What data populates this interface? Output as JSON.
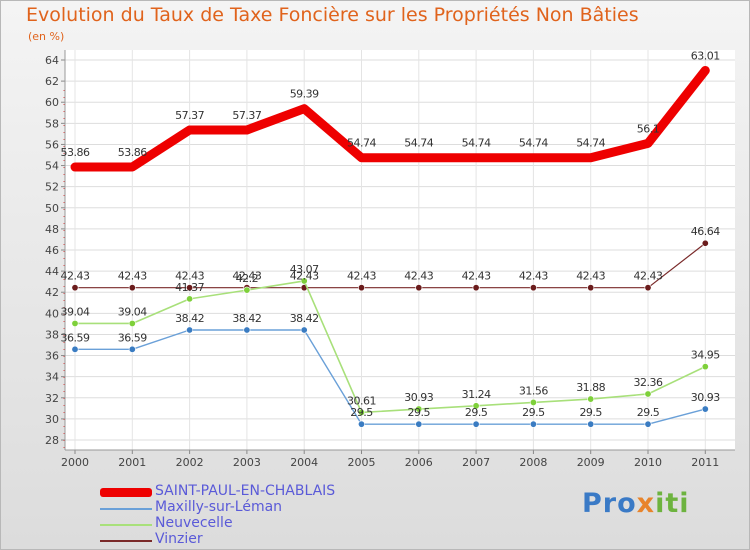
{
  "chart_data": {
    "type": "line",
    "title": "Evolution du Taux de Taxe Foncière sur les Propriétés Non Bâties",
    "ylabel": "(en %)",
    "xlabel": "",
    "ylim": [
      28,
      64
    ],
    "ytick_step": 2,
    "grid": true,
    "x": [
      "2000",
      "2001",
      "2002",
      "2003",
      "2004",
      "2005",
      "2006",
      "2007",
      "2008",
      "2009",
      "2010",
      "2011"
    ],
    "series": [
      {
        "name": "SAINT-PAUL-EN-CHABLAIS",
        "color": "#ee0000",
        "width": 9,
        "marker": false,
        "values": [
          53.86,
          53.86,
          57.37,
          57.37,
          59.39,
          54.74,
          54.74,
          54.74,
          54.74,
          54.74,
          56.1,
          63.01
        ],
        "labels": [
          "53.86",
          "53.86",
          "57.37",
          "57.37",
          "59.39",
          "54.74",
          "54.74",
          "54.74",
          "54.74",
          "54.74",
          "56.1",
          "63.01"
        ]
      },
      {
        "name": "Vinzier",
        "color": "#7a2a2a",
        "marker_color": "#6b1c1c",
        "width": 1.2,
        "marker": true,
        "values": [
          42.43,
          42.43,
          42.43,
          42.43,
          42.43,
          42.43,
          42.43,
          42.43,
          42.43,
          42.43,
          42.43,
          46.64
        ],
        "labels": [
          "42.43",
          "42.43",
          "42.43",
          "42.43",
          "42.43",
          "42.43",
          "42.43",
          "42.43",
          "42.43",
          "42.43",
          "42.43",
          "46.64"
        ]
      },
      {
        "name": "Neuvecelle",
        "color": "#a8e07a",
        "marker_color": "#7ed03a",
        "width": 1.6,
        "marker": true,
        "values": [
          39.04,
          39.04,
          41.37,
          42.2,
          43.07,
          30.61,
          30.93,
          31.24,
          31.56,
          31.88,
          32.36,
          34.95
        ],
        "labels": [
          "39.04",
          "39.04",
          "41.37",
          "42.2",
          "43.07",
          "30.61",
          "30.93",
          "31.24",
          "31.56",
          "31.88",
          "32.36",
          "34.95"
        ]
      },
      {
        "name": "Maxilly-sur-Léman",
        "color": "#6aa0d8",
        "marker_color": "#3a7cc2",
        "width": 1.4,
        "marker": true,
        "values": [
          36.59,
          36.59,
          38.42,
          38.42,
          38.42,
          29.5,
          29.5,
          29.5,
          29.5,
          29.5,
          29.5,
          30.93
        ],
        "labels": [
          "36.59",
          "36.59",
          "38.42",
          "38.42",
          "38.42",
          "29.5",
          "29.5",
          "29.5",
          "29.5",
          "29.5",
          "29.5",
          "30.93"
        ]
      }
    ],
    "legend": [
      {
        "name": "SAINT-PAUL-EN-CHABLAIS",
        "color": "#ee0000",
        "thick": true
      },
      {
        "name": "Maxilly-sur-Léman",
        "color": "#6aa0d8",
        "thick": false
      },
      {
        "name": "Neuvecelle",
        "color": "#a8e07a",
        "thick": false
      },
      {
        "name": "Vinzier",
        "color": "#7a2a2a",
        "thick": false
      }
    ],
    "legend_text_color": "#5a5ad8"
  },
  "logo": {
    "part1": "Pro",
    "part2": "x",
    "part3": "iti"
  }
}
